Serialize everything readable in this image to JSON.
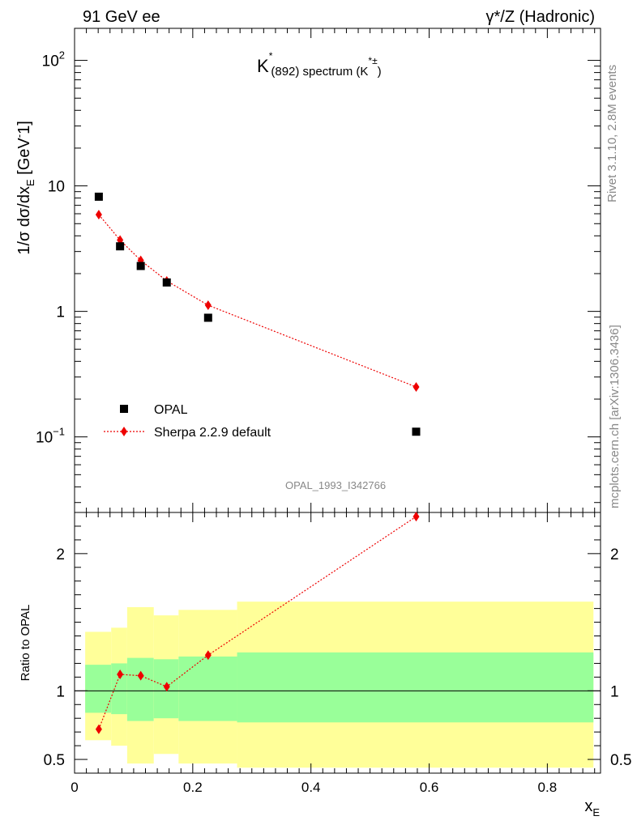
{
  "header": {
    "left": "91 GeV ee",
    "right": "γ*/Z (Hadronic)"
  },
  "side_labels": {
    "top": "Rivet 3.1.10,  2.8M events",
    "bottom": "mcplots.cern.ch [arXiv:1306.3436]"
  },
  "chart_data": [
    {
      "type": "scatter",
      "title": "K*(892) spectrum (K*±)",
      "title_parts": {
        "k": "K",
        "sup1": "*",
        "sub": "(892) spectrum (K",
        "sup2": "*±",
        "close": ")"
      },
      "ylabel": "1/σ dσ/dx_E [GeV⁻1]",
      "ylabel_parts": {
        "main": "1/σ dσ/dx",
        "sub": "E",
        "unit": " [GeV",
        "sup": "-",
        "tail": "1]"
      },
      "yscale": "log",
      "ylim": [
        0.025,
        180
      ],
      "xlim": [
        0,
        0.89
      ],
      "y_ticks": [
        {
          "value": 0.1,
          "base": "10",
          "exp": "−1"
        },
        {
          "value": 1,
          "label": "1"
        },
        {
          "value": 10,
          "label": "10"
        },
        {
          "value": 100,
          "base": "10",
          "exp": "2"
        }
      ],
      "analysis_label": "OPAL_1993_I342766",
      "legend_position": "bottom-left",
      "series": [
        {
          "name": "OPAL",
          "marker": "square",
          "color": "#000000",
          "x": [
            0.041,
            0.077,
            0.112,
            0.156,
            0.226,
            0.578
          ],
          "y": [
            8.2,
            3.3,
            2.3,
            1.7,
            0.89,
            0.11
          ]
        },
        {
          "name": "Sherpa 2.2.9 default",
          "marker": "diamond",
          "line": "dotted",
          "color": "#ee0000",
          "x": [
            0.041,
            0.077,
            0.112,
            0.156,
            0.226,
            0.578
          ],
          "y": [
            5.9,
            3.7,
            2.55,
            1.75,
            1.12,
            0.25
          ]
        }
      ]
    },
    {
      "type": "line",
      "ylabel": "Ratio to OPAL",
      "xlabel": "x_E",
      "xlabel_parts": {
        "main": "x",
        "sub": "E"
      },
      "xlim": [
        0,
        0.89
      ],
      "ylim": [
        0.4,
        2.3
      ],
      "x_ticks": [
        {
          "value": 0,
          "label": "0"
        },
        {
          "value": 0.2,
          "label": "0.2"
        },
        {
          "value": 0.4,
          "label": "0.4"
        },
        {
          "value": 0.6,
          "label": "0.6"
        },
        {
          "value": 0.8,
          "label": "0.8"
        }
      ],
      "y_ticks": [
        {
          "value": 0.5,
          "label": "0.5"
        },
        {
          "value": 1,
          "label": "1"
        },
        {
          "value": 2,
          "label": "2"
        }
      ],
      "reference_line": 1,
      "bands": [
        {
          "x0": 0.018,
          "x1": 0.062,
          "inner": [
            0.84,
            1.19
          ],
          "outer": [
            0.64,
            1.43
          ]
        },
        {
          "x0": 0.062,
          "x1": 0.089,
          "inner": [
            0.83,
            1.2
          ],
          "outer": [
            0.6,
            1.46
          ]
        },
        {
          "x0": 0.089,
          "x1": 0.134,
          "inner": [
            0.78,
            1.24
          ],
          "outer": [
            0.47,
            1.61
          ]
        },
        {
          "x0": 0.134,
          "x1": 0.176,
          "inner": [
            0.8,
            1.23
          ],
          "outer": [
            0.54,
            1.55
          ]
        },
        {
          "x0": 0.176,
          "x1": 0.275,
          "inner": [
            0.78,
            1.25
          ],
          "outer": [
            0.47,
            1.59
          ]
        },
        {
          "x0": 0.275,
          "x1": 0.878,
          "inner": [
            0.77,
            1.28
          ],
          "outer": [
            0.44,
            1.65
          ]
        }
      ],
      "band_colors": {
        "inner": "#99ff99",
        "outer": "#ffff99"
      },
      "series": [
        {
          "name": "Sherpa 2.2.9 default",
          "marker": "diamond",
          "line": "dotted",
          "color": "#ee0000",
          "x": [
            0.041,
            0.077,
            0.112,
            0.156,
            0.226,
            0.578
          ],
          "y": [
            0.72,
            1.12,
            1.11,
            1.03,
            1.26,
            2.27
          ]
        }
      ]
    }
  ]
}
